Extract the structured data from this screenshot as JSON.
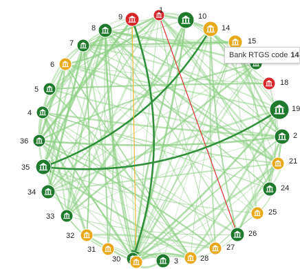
{
  "tooltip": {
    "label": "Bank RTGS code",
    "value": "14"
  },
  "colors": {
    "green": "#1f7a2e",
    "yellow": "#e8a91c",
    "red": "#d6282b",
    "edge": "#8fcf86",
    "edge_dark": "#2f8f3a",
    "edge_yellow": "#f1b83a",
    "edge_red": "#e0302f"
  },
  "icon": "bank-icon",
  "nodes": [
    {
      "id": "1",
      "status": "red",
      "size": "m"
    },
    {
      "id": "9",
      "status": "red",
      "size": "m"
    },
    {
      "id": "8",
      "status": "green",
      "size": "m"
    },
    {
      "id": "7",
      "status": "green",
      "size": "m"
    },
    {
      "id": "6",
      "status": "yellow",
      "size": "m"
    },
    {
      "id": "5",
      "status": "green",
      "size": "m"
    },
    {
      "id": "4",
      "status": "green",
      "size": "m"
    },
    {
      "id": "36",
      "status": "green",
      "size": "m"
    },
    {
      "id": "35",
      "status": "green",
      "size": "l"
    },
    {
      "id": "34",
      "status": "green",
      "size": "m"
    },
    {
      "id": "33",
      "status": "green",
      "size": "m"
    },
    {
      "id": "32",
      "status": "yellow",
      "size": "m"
    },
    {
      "id": "31",
      "status": "yellow",
      "size": "m"
    },
    {
      "id": "30",
      "status": "green",
      "size": "m"
    },
    {
      "id": "29",
      "status": "yellow",
      "size": "m"
    },
    {
      "id": "3",
      "status": "green",
      "size": "m"
    },
    {
      "id": "28",
      "status": "yellow",
      "size": "m"
    },
    {
      "id": "27",
      "status": "yellow",
      "size": "m"
    },
    {
      "id": "26",
      "status": "green",
      "size": "m"
    },
    {
      "id": "25",
      "status": "yellow",
      "size": "m"
    },
    {
      "id": "24",
      "status": "green",
      "size": "m"
    },
    {
      "id": "21",
      "status": "yellow",
      "size": "m"
    },
    {
      "id": "2",
      "status": "green",
      "size": "m"
    },
    {
      "id": "19",
      "status": "green",
      "size": "xl"
    },
    {
      "id": "18",
      "status": "red",
      "size": "m"
    },
    {
      "id": "17",
      "status": "green",
      "size": "m"
    },
    {
      "id": "15",
      "status": "yellow",
      "size": "m"
    },
    {
      "id": "14",
      "status": "yellow",
      "size": "m"
    },
    {
      "id": "10",
      "status": "green",
      "size": "l"
    },
    {
      "id": "11",
      "status": "red",
      "size": "m"
    }
  ],
  "labels_hidden": [
    "29",
    "17",
    "11"
  ],
  "highlight_edges": [
    {
      "from": "14",
      "to": "35",
      "kind": "dark"
    },
    {
      "from": "1",
      "to": "26",
      "kind": "red"
    },
    {
      "from": "9",
      "to": "29",
      "kind": "yellow"
    },
    {
      "from": "9",
      "to": "30",
      "kind": "dark"
    },
    {
      "from": "19",
      "to": "35",
      "kind": "dark"
    }
  ]
}
